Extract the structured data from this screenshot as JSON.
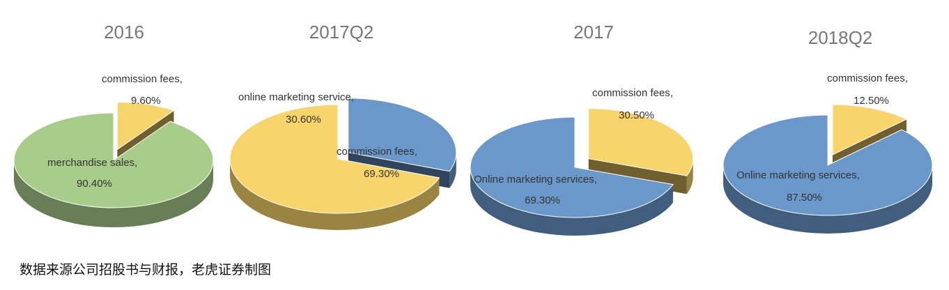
{
  "chart_data": [
    {
      "type": "pie",
      "title": "2016",
      "slices": [
        {
          "name": "merchandise sales,",
          "value": 90.4,
          "value_label": "90.40%",
          "color": "#a8cc8a",
          "exploded": false
        },
        {
          "name": "commission fees,",
          "value": 9.6,
          "value_label": "9.60%",
          "color": "#f8d56b",
          "exploded": true
        }
      ]
    },
    {
      "type": "pie",
      "title": "2017Q2",
      "slices": [
        {
          "name": "commission fees,",
          "value": 69.3,
          "value_label": "69.30%",
          "color": "#f8d56b",
          "exploded": false
        },
        {
          "name": "online marketing service,",
          "value": 30.6,
          "value_label": "30.60%",
          "color": "#6a98cb",
          "exploded": true
        }
      ]
    },
    {
      "type": "pie",
      "title": "2017",
      "slices": [
        {
          "name": "Online marketing services,",
          "value": 69.3,
          "value_label": "69.30%",
          "color": "#6a98cb",
          "exploded": false
        },
        {
          "name": "commission fees,",
          "value": 30.5,
          "value_label": "30.50%",
          "color": "#f8d56b",
          "exploded": true
        }
      ]
    },
    {
      "type": "pie",
      "title": "2018Q2",
      "slices": [
        {
          "name": "Online marketing services,",
          "value": 87.5,
          "value_label": "87.50%",
          "color": "#6a98cb",
          "exploded": false
        },
        {
          "name": "commission fees,",
          "value": 12.5,
          "value_label": "12.50%",
          "color": "#f8d56b",
          "exploded": true
        }
      ]
    }
  ],
  "footer": {
    "source": "数据来源公司招股书与财报，老虎证券制图"
  }
}
